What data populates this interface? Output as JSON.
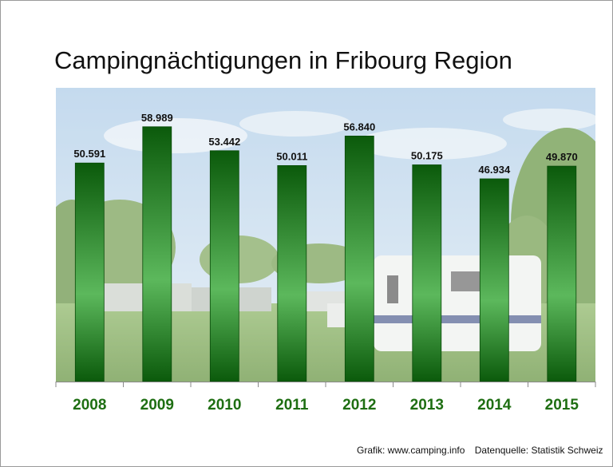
{
  "title": "Campingnächtigungen in Fribourg Region",
  "source": {
    "graphic": "Grafik: www.camping.info",
    "data": "Datenquelle: Statistik Schweiz"
  },
  "colors": {
    "bar_dark": "#0b5a0b",
    "bar_light": "#5cb85c",
    "label_green": "#1e6e12"
  },
  "chart_data": {
    "type": "bar",
    "title": "Campingnächtigungen in Fribourg Region",
    "categories": [
      "2008",
      "2009",
      "2010",
      "2011",
      "2012",
      "2013",
      "2014",
      "2015"
    ],
    "values": [
      50591,
      58989,
      53442,
      50011,
      56840,
      50175,
      46934,
      49870
    ],
    "value_labels": [
      "50.591",
      "58.989",
      "53.442",
      "50.011",
      "56.840",
      "50.175",
      "46.934",
      "49.870"
    ],
    "xlabel": "",
    "ylabel": "",
    "ylim": [
      0,
      68000
    ],
    "grid": false,
    "legend": "none"
  }
}
